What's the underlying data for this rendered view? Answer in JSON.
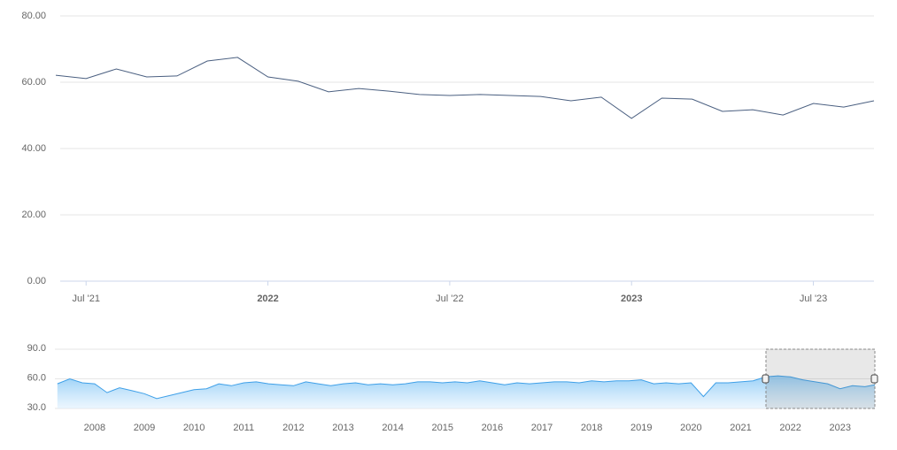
{
  "chart_data": [
    {
      "type": "line",
      "color": "#4a5f80",
      "x": [
        "2021-06",
        "2021-07",
        "2021-08",
        "2021-09",
        "2021-10",
        "2021-11",
        "2021-12",
        "2022-01",
        "2022-02",
        "2022-03",
        "2022-04",
        "2022-05",
        "2022-06",
        "2022-07",
        "2022-08",
        "2022-09",
        "2022-10",
        "2022-11",
        "2022-12",
        "2023-01",
        "2023-02",
        "2023-03",
        "2023-04",
        "2023-05",
        "2023-06",
        "2023-07",
        "2023-08",
        "2023-09"
      ],
      "values": [
        62.1,
        61.1,
        64.0,
        61.6,
        61.9,
        66.4,
        67.5,
        61.6,
        60.3,
        57.1,
        58.1,
        57.3,
        56.3,
        56.0,
        56.3,
        56.0,
        55.7,
        54.4,
        55.5,
        49.1,
        55.2,
        54.9,
        51.2,
        51.7,
        50.1,
        53.6,
        52.5,
        54.4
      ],
      "xlim": [
        "2021-06",
        "2023-09"
      ],
      "xticks": [
        {
          "value": "2021-07",
          "label": "Jul '21"
        },
        {
          "value": "2022-01",
          "label": "2022"
        },
        {
          "value": "2022-07",
          "label": "Jul '22"
        },
        {
          "value": "2023-01",
          "label": "2023"
        },
        {
          "value": "2023-07",
          "label": "Jul '23"
        }
      ],
      "ylim": [
        0,
        80
      ],
      "yticks": [
        {
          "value": 0,
          "label": "0.00"
        },
        {
          "value": 20,
          "label": "20.00"
        },
        {
          "value": 40,
          "label": "40.00"
        },
        {
          "value": 60,
          "label": "60.00"
        },
        {
          "value": 80,
          "label": "80.00"
        }
      ],
      "grid": true
    },
    {
      "type": "area",
      "color": "#3fa0e8",
      "x": [
        2007.25,
        2007.5,
        2007.75,
        2008,
        2008.25,
        2008.5,
        2008.75,
        2009,
        2009.25,
        2009.5,
        2009.75,
        2010,
        2010.25,
        2010.5,
        2010.75,
        2011,
        2011.25,
        2011.5,
        2011.75,
        2012,
        2012.25,
        2012.5,
        2012.75,
        2013,
        2013.25,
        2013.5,
        2013.75,
        2014,
        2014.25,
        2014.5,
        2014.75,
        2015,
        2015.25,
        2015.5,
        2015.75,
        2016,
        2016.25,
        2016.5,
        2016.75,
        2017,
        2017.25,
        2017.5,
        2017.75,
        2018,
        2018.25,
        2018.5,
        2018.75,
        2019,
        2019.25,
        2019.5,
        2019.75,
        2020,
        2020.25,
        2020.5,
        2020.75,
        2021,
        2021.25,
        2021.5,
        2021.75,
        2022,
        2022.25,
        2022.5,
        2022.75,
        2023,
        2023.25,
        2023.5,
        2023.7
      ],
      "values": [
        55,
        60,
        56,
        55,
        46,
        51,
        48,
        45,
        40,
        43,
        46,
        49,
        50,
        55,
        53,
        56,
        57,
        55,
        54,
        53,
        57,
        55,
        53,
        55,
        56,
        54,
        55,
        54,
        55,
        57,
        57,
        56,
        57,
        56,
        58,
        56,
        54,
        56,
        55,
        56,
        57,
        57,
        56,
        58,
        57,
        58,
        58,
        59,
        55,
        56,
        55,
        56,
        42,
        56,
        56,
        57,
        58,
        62,
        63,
        62,
        59,
        57,
        55,
        50,
        53,
        52,
        54
      ],
      "xlim": [
        2007.2,
        2023.7
      ],
      "xticks": [
        2008,
        2009,
        2010,
        2011,
        2012,
        2013,
        2014,
        2015,
        2016,
        2017,
        2018,
        2019,
        2020,
        2021,
        2022,
        2023
      ],
      "ylim": [
        30,
        90
      ],
      "yticks": [
        {
          "value": 30,
          "label": "30.0"
        },
        {
          "value": 60,
          "label": "60.0"
        },
        {
          "value": 90,
          "label": "90.0"
        }
      ],
      "grid": true
    }
  ]
}
